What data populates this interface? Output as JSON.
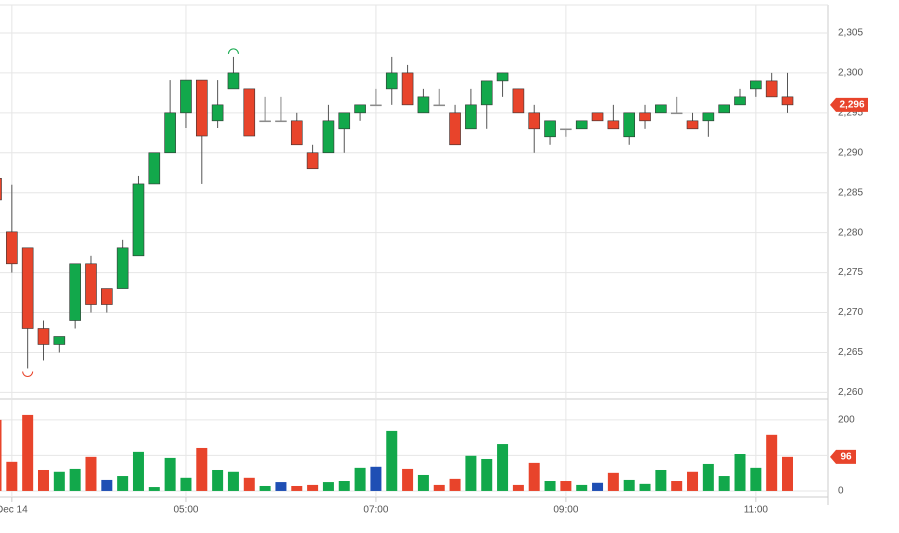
{
  "chart_data": [
    {
      "type": "candlestick",
      "categories": [
        null,
        "Dec 14",
        null,
        null,
        null,
        null,
        null,
        null,
        null,
        null,
        null,
        null,
        "05:00",
        null,
        null,
        null,
        null,
        null,
        null,
        null,
        null,
        null,
        null,
        null,
        "07:00",
        null,
        null,
        null,
        null,
        null,
        null,
        null,
        null,
        null,
        null,
        null,
        "09:00",
        null,
        null,
        null,
        null,
        null,
        null,
        null,
        null,
        null,
        null,
        null,
        "11:00",
        null,
        null
      ],
      "open": [
        2286.8,
        2280.1,
        2278.1,
        2268,
        2266,
        2269,
        2276.1,
        2273,
        2273,
        2277.1,
        2286.1,
        2290,
        2295,
        2299.1,
        2294,
        2298,
        2298,
        2294,
        2294,
        2294,
        2290,
        2290,
        2293,
        2295,
        2296,
        2298,
        2300,
        2295,
        2296,
        2295,
        2293,
        2296,
        2299,
        2298,
        2295,
        2292,
        2293,
        2293,
        2295,
        2294,
        2292,
        2295,
        2295,
        2295,
        2294,
        2294,
        2295,
        2296,
        2298,
        2299,
        2297
      ],
      "high": [
        2287,
        2286,
        2278.1,
        2269,
        2267,
        2276.1,
        2277.1,
        2273,
        2279.1,
        2287.1,
        2290,
        2299.1,
        2299.1,
        2299.1,
        2299.1,
        2302,
        2298,
        2297,
        2297,
        2295,
        2291,
        2296,
        2295,
        2296,
        2298,
        2302,
        2301,
        2298,
        2298,
        2296,
        2298,
        2299,
        2300,
        2298,
        2296,
        2294,
        2293,
        2294,
        2295,
        2296,
        2295,
        2296,
        2296,
        2297,
        2295,
        2295,
        2296,
        2298,
        2299,
        2300,
        2300
      ],
      "low": [
        2284,
        2275,
        2263,
        2264,
        2265,
        2268,
        2270,
        2270,
        2273,
        2277.1,
        2286.1,
        2290,
        2293.1,
        2286.1,
        2293.1,
        2298,
        2292.1,
        2294,
        2294,
        2291,
        2288,
        2290,
        2290,
        2294,
        2296,
        2296,
        2296,
        2295,
        2296,
        2291,
        2293,
        2293,
        2297,
        2295,
        2290,
        2291,
        2292,
        2293,
        2294,
        2293,
        2291,
        2293,
        2295,
        2295,
        2293,
        2292,
        2295,
        2296,
        2297,
        2297,
        2295
      ],
      "close": [
        2284.1,
        2276.1,
        2268,
        2266,
        2267,
        2276.1,
        2271,
        2271,
        2278.1,
        2286.1,
        2290,
        2295,
        2299.1,
        2292.1,
        2296,
        2300,
        2292.1,
        2294,
        2294,
        2291,
        2288,
        2294,
        2295,
        2296,
        2296,
        2300,
        2296,
        2297,
        2296,
        2291,
        2296,
        2299,
        2300,
        2295,
        2293,
        2294,
        2293,
        2294,
        2294,
        2293,
        2295,
        2294,
        2296,
        2295,
        2293,
        2295,
        2296,
        2297,
        2299,
        2297,
        2296
      ],
      "up_color": "#12a84b",
      "down_color": "#e8442b",
      "flat_color": "#888888",
      "ylim": [
        2259.3,
        2308.5
      ],
      "yticks": [
        {
          "value": 2260,
          "label": "2,260"
        },
        {
          "value": 2265,
          "label": "2,265"
        },
        {
          "value": 2270,
          "label": "2,270"
        },
        {
          "value": 2275,
          "label": "2,275"
        },
        {
          "value": 2280,
          "label": "2,280"
        },
        {
          "value": 2285,
          "label": "2,285"
        },
        {
          "value": 2290,
          "label": "2,290"
        },
        {
          "value": 2295,
          "label": "2,295"
        },
        {
          "value": 2300,
          "label": "2,300"
        },
        {
          "value": 2305,
          "label": "2,305"
        }
      ],
      "last_price": {
        "value": 2296,
        "label": "2,296"
      },
      "grid": true
    },
    {
      "type": "bar",
      "values": [
        200,
        82,
        214,
        59,
        54,
        62,
        96,
        31,
        42,
        110,
        11,
        93,
        37,
        121,
        59,
        54,
        37,
        14,
        25,
        14,
        17,
        25,
        28,
        65,
        68,
        169,
        62,
        45,
        17,
        34,
        99,
        90,
        132,
        17,
        79,
        28,
        28,
        17,
        23,
        51,
        31,
        20,
        59,
        28,
        54,
        76,
        42,
        104,
        65,
        158,
        96
      ],
      "colors": [
        "#e8442b",
        "#e8442b",
        "#e8442b",
        "#e8442b",
        "#12a84b",
        "#12a84b",
        "#e8442b",
        "#1f4fb4",
        "#12a84b",
        "#12a84b",
        "#12a84b",
        "#12a84b",
        "#12a84b",
        "#e8442b",
        "#12a84b",
        "#12a84b",
        "#e8442b",
        "#12a84b",
        "#1f4fb4",
        "#e8442b",
        "#e8442b",
        "#12a84b",
        "#12a84b",
        "#12a84b",
        "#1f4fb4",
        "#12a84b",
        "#e8442b",
        "#12a84b",
        "#e8442b",
        "#e8442b",
        "#12a84b",
        "#12a84b",
        "#12a84b",
        "#e8442b",
        "#e8442b",
        "#12a84b",
        "#e8442b",
        "#12a84b",
        "#1f4fb4",
        "#e8442b",
        "#12a84b",
        "#12a84b",
        "#12a84b",
        "#e8442b",
        "#e8442b",
        "#12a84b",
        "#12a84b",
        "#12a84b",
        "#12a84b",
        "#e8442b",
        "#e8442b"
      ],
      "ylim": [
        -17,
        256
      ],
      "yticks": [
        0,
        100,
        200
      ],
      "grid": true
    }
  ]
}
